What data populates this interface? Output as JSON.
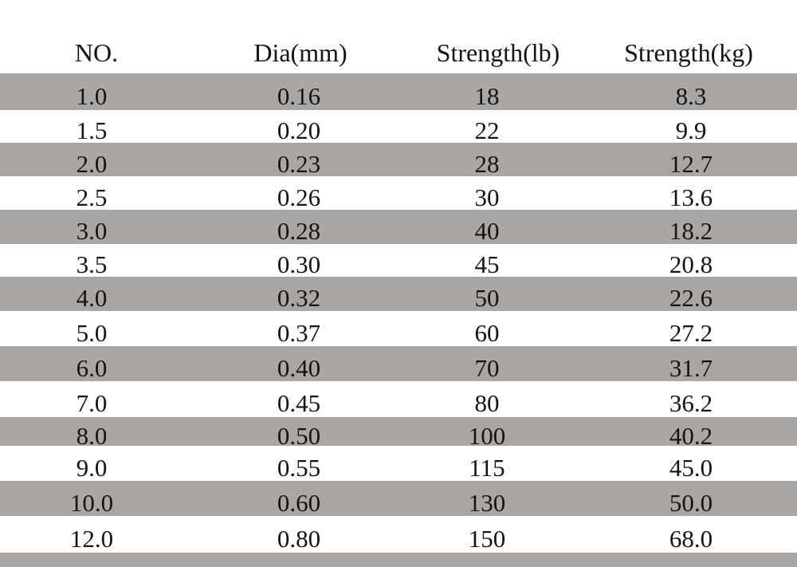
{
  "colors": {
    "row_stripe": "#aaa6a4",
    "background": "#ffffff",
    "text": "#141414"
  },
  "chart_data": {
    "type": "table",
    "title": "",
    "columns": [
      "NO.",
      "Dia(mm)",
      "Strength(lb)",
      "Strength(kg)"
    ],
    "rows": [
      [
        "1.0",
        "0.16",
        "18",
        "8.3"
      ],
      [
        "1.5",
        "0.20",
        "22",
        "9.9"
      ],
      [
        "2.0",
        "0.23",
        "28",
        "12.7"
      ],
      [
        "2.5",
        "0.26",
        "30",
        "13.6"
      ],
      [
        "3.0",
        "0.28",
        "40",
        "18.2"
      ],
      [
        "3.5",
        "0.30",
        "45",
        "20.8"
      ],
      [
        "4.0",
        "0.32",
        "50",
        "22.6"
      ],
      [
        "5.0",
        "0.37",
        "60",
        "27.2"
      ],
      [
        "6.0",
        "0.40",
        "70",
        "31.7"
      ],
      [
        "7.0",
        "0.45",
        "80",
        "36.2"
      ],
      [
        "8.0",
        "0.50",
        "100",
        "40.2"
      ],
      [
        "9.0",
        "0.55",
        "115",
        "45.0"
      ],
      [
        "10.0",
        "0.60",
        "130",
        "50.0"
      ],
      [
        "12.0",
        "0.80",
        "150",
        "68.0"
      ]
    ],
    "layout": {
      "striped": true,
      "stripe_pattern": "first-data-row-gray-then-alternating",
      "gridlines": false,
      "borders": false
    }
  }
}
